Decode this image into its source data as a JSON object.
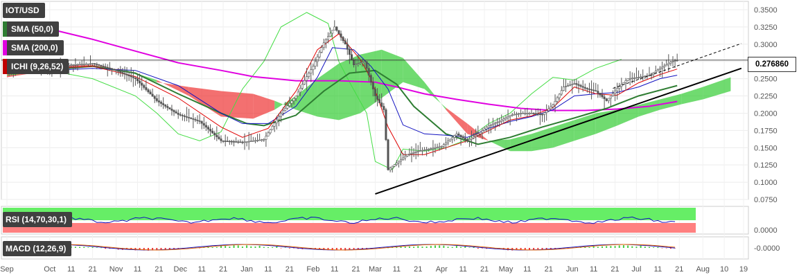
{
  "header": {
    "symbol": "IOT/USD",
    "indicators": [
      "SMA (50,0)",
      "SMA (200,0)",
      "ICHI (9,26,52)"
    ],
    "indicator_colors": [
      "#2e7d32",
      "#e000e0",
      "#c00000"
    ]
  },
  "price_badge": "0.276860",
  "rsi_panel": {
    "label": "RSI (14,70,30,1)",
    "axis_value": "0.0000"
  },
  "macd_panel": {
    "label": "MACD (12,26,9)",
    "axis_value": "-0.0000"
  },
  "colors": {
    "candle": "#555555",
    "sma50": "#2e7d32",
    "sma200": "#e000e0",
    "tenkan": "#e00000",
    "kijun": "#1010c0",
    "chikou": "#44dd44",
    "cloud_bull": "#33cc33",
    "cloud_bear": "#ee3333",
    "trendline": "#000000"
  },
  "chart_data": {
    "type": "line",
    "title": "IOT/USD",
    "ylim": [
      0.075,
      0.36
    ],
    "y_ticks": [
      "0.3500",
      "0.3250",
      "0.3000",
      "0.2750",
      "0.2500",
      "0.2250",
      "0.2000",
      "0.1750",
      "0.1500",
      "0.1250",
      "0.1000",
      "0.0750"
    ],
    "x_ticks": [
      "Sep",
      "Oct",
      "11",
      "21",
      "Nov",
      "11",
      "21",
      "Dec",
      "11",
      "21",
      "Jan",
      "11",
      "21",
      "Feb",
      "11",
      "21",
      "Mar",
      "11",
      "21",
      "Apr",
      "11",
      "21",
      "May",
      "11",
      "21",
      "Jun",
      "11",
      "21",
      "Jul",
      "11",
      "21",
      "Aug",
      "10",
      "19"
    ],
    "x_tick_days": [
      0,
      20,
      30,
      40,
      51,
      61,
      71,
      81,
      91,
      101,
      112,
      122,
      132,
      143,
      153,
      163,
      172,
      182,
      192,
      203,
      213,
      223,
      233,
      243,
      253,
      264,
      274,
      284,
      294,
      304,
      314,
      325,
      335,
      344
    ],
    "price": {
      "days": [
        0,
        10,
        20,
        30,
        40,
        50,
        60,
        70,
        80,
        90,
        100,
        110,
        120,
        128,
        135,
        140,
        143,
        148,
        153,
        158,
        162,
        167,
        172,
        176,
        178,
        182,
        187,
        192,
        197,
        203,
        210,
        215,
        220,
        225,
        230,
        235,
        240,
        245,
        250,
        255,
        260,
        265,
        270,
        275,
        280,
        285,
        290,
        295,
        300,
        305,
        310,
        313
      ],
      "values": [
        0.258,
        0.266,
        0.262,
        0.27,
        0.272,
        0.263,
        0.25,
        0.218,
        0.198,
        0.188,
        0.16,
        0.158,
        0.162,
        0.2,
        0.225,
        0.253,
        0.268,
        0.302,
        0.325,
        0.3,
        0.27,
        0.275,
        0.225,
        0.205,
        0.118,
        0.128,
        0.14,
        0.145,
        0.148,
        0.152,
        0.17,
        0.16,
        0.17,
        0.182,
        0.188,
        0.197,
        0.2,
        0.2,
        0.198,
        0.212,
        0.238,
        0.243,
        0.236,
        0.232,
        0.218,
        0.236,
        0.25,
        0.252,
        0.255,
        0.265,
        0.274,
        0.277
      ]
    },
    "sma50": {
      "days": [
        0,
        20,
        40,
        60,
        80,
        100,
        112,
        120,
        135,
        148,
        160,
        172,
        182,
        190,
        205,
        220,
        235,
        250,
        265,
        280,
        295,
        313
      ],
      "values": [
        0.262,
        0.263,
        0.268,
        0.258,
        0.228,
        0.2,
        0.185,
        0.182,
        0.197,
        0.232,
        0.258,
        0.262,
        0.242,
        0.21,
        0.17,
        0.155,
        0.165,
        0.18,
        0.193,
        0.207,
        0.225,
        0.24
      ]
    },
    "sma200": {
      "days": [
        0,
        20,
        40,
        60,
        80,
        100,
        115,
        135,
        155,
        172,
        182,
        195,
        210,
        225,
        240,
        255,
        270,
        285,
        300,
        313
      ],
      "values": [
        0.33,
        0.322,
        0.307,
        0.29,
        0.273,
        0.262,
        0.253,
        0.247,
        0.247,
        0.245,
        0.238,
        0.228,
        0.22,
        0.213,
        0.207,
        0.204,
        0.204,
        0.206,
        0.21,
        0.217
      ]
    },
    "chikou": {
      "days": [
        0,
        20,
        40,
        60,
        70,
        80,
        90,
        100,
        110,
        120,
        128,
        140,
        150,
        155,
        160,
        168,
        172,
        180,
        185,
        195,
        205,
        215,
        225,
        235,
        245,
        255,
        265,
        275,
        287
      ],
      "values": [
        0.255,
        0.262,
        0.25,
        0.225,
        0.2,
        0.17,
        0.16,
        0.173,
        0.235,
        0.275,
        0.325,
        0.346,
        0.33,
        0.275,
        0.245,
        0.2,
        0.13,
        0.118,
        0.148,
        0.145,
        0.15,
        0.162,
        0.185,
        0.2,
        0.228,
        0.252,
        0.248,
        0.265,
        0.278
      ]
    },
    "tenkan": {
      "days": [
        0,
        20,
        40,
        60,
        80,
        100,
        110,
        122,
        135,
        145,
        155,
        165,
        170,
        178,
        185,
        195,
        205,
        215,
        225,
        235,
        245,
        255,
        265,
        275,
        285,
        295,
        305,
        313
      ],
      "values": [
        0.262,
        0.265,
        0.268,
        0.253,
        0.222,
        0.18,
        0.165,
        0.178,
        0.232,
        0.292,
        0.315,
        0.278,
        0.25,
        0.18,
        0.14,
        0.14,
        0.15,
        0.16,
        0.175,
        0.19,
        0.196,
        0.208,
        0.238,
        0.228,
        0.226,
        0.244,
        0.256,
        0.264
      ]
    },
    "kijun": {
      "days": [
        0,
        20,
        40,
        60,
        80,
        100,
        110,
        122,
        135,
        145,
        152,
        162,
        170,
        178,
        185,
        195,
        205,
        215,
        225,
        235,
        245,
        255,
        265,
        275,
        285,
        295,
        305,
        313
      ],
      "values": [
        0.26,
        0.262,
        0.265,
        0.262,
        0.24,
        0.2,
        0.185,
        0.185,
        0.21,
        0.252,
        0.295,
        0.292,
        0.268,
        0.235,
        0.183,
        0.17,
        0.168,
        0.165,
        0.178,
        0.188,
        0.195,
        0.205,
        0.225,
        0.228,
        0.23,
        0.238,
        0.25,
        0.255
      ]
    },
    "cloud": {
      "days": [
        0,
        20,
        40,
        55,
        70,
        85,
        100,
        115,
        125,
        135,
        145,
        155,
        165,
        175,
        185,
        195,
        205,
        215,
        225,
        235,
        245,
        255,
        265,
        275,
        285,
        295,
        305,
        315,
        325,
        338
      ],
      "span_a": [
        0.252,
        0.262,
        0.268,
        0.263,
        0.248,
        0.225,
        0.195,
        0.192,
        0.205,
        0.225,
        0.25,
        0.272,
        0.285,
        0.292,
        0.28,
        0.245,
        0.205,
        0.17,
        0.16,
        0.162,
        0.17,
        0.18,
        0.19,
        0.2,
        0.205,
        0.212,
        0.22,
        0.228,
        0.238,
        0.252
      ],
      "span_b": [
        0.258,
        0.268,
        0.27,
        0.262,
        0.245,
        0.238,
        0.232,
        0.228,
        0.218,
        0.205,
        0.195,
        0.19,
        0.2,
        0.222,
        0.245,
        0.235,
        0.208,
        0.185,
        0.16,
        0.145,
        0.145,
        0.15,
        0.16,
        0.17,
        0.182,
        0.195,
        0.205,
        0.213,
        0.22,
        0.232
      ]
    },
    "trendline": {
      "days": [
        172,
        343
      ],
      "values": [
        0.083,
        0.265
      ]
    },
    "trendline_extension": {
      "days": [
        283,
        343
      ],
      "values": [
        0.236,
        0.301
      ]
    },
    "hline": 0.2769
  }
}
